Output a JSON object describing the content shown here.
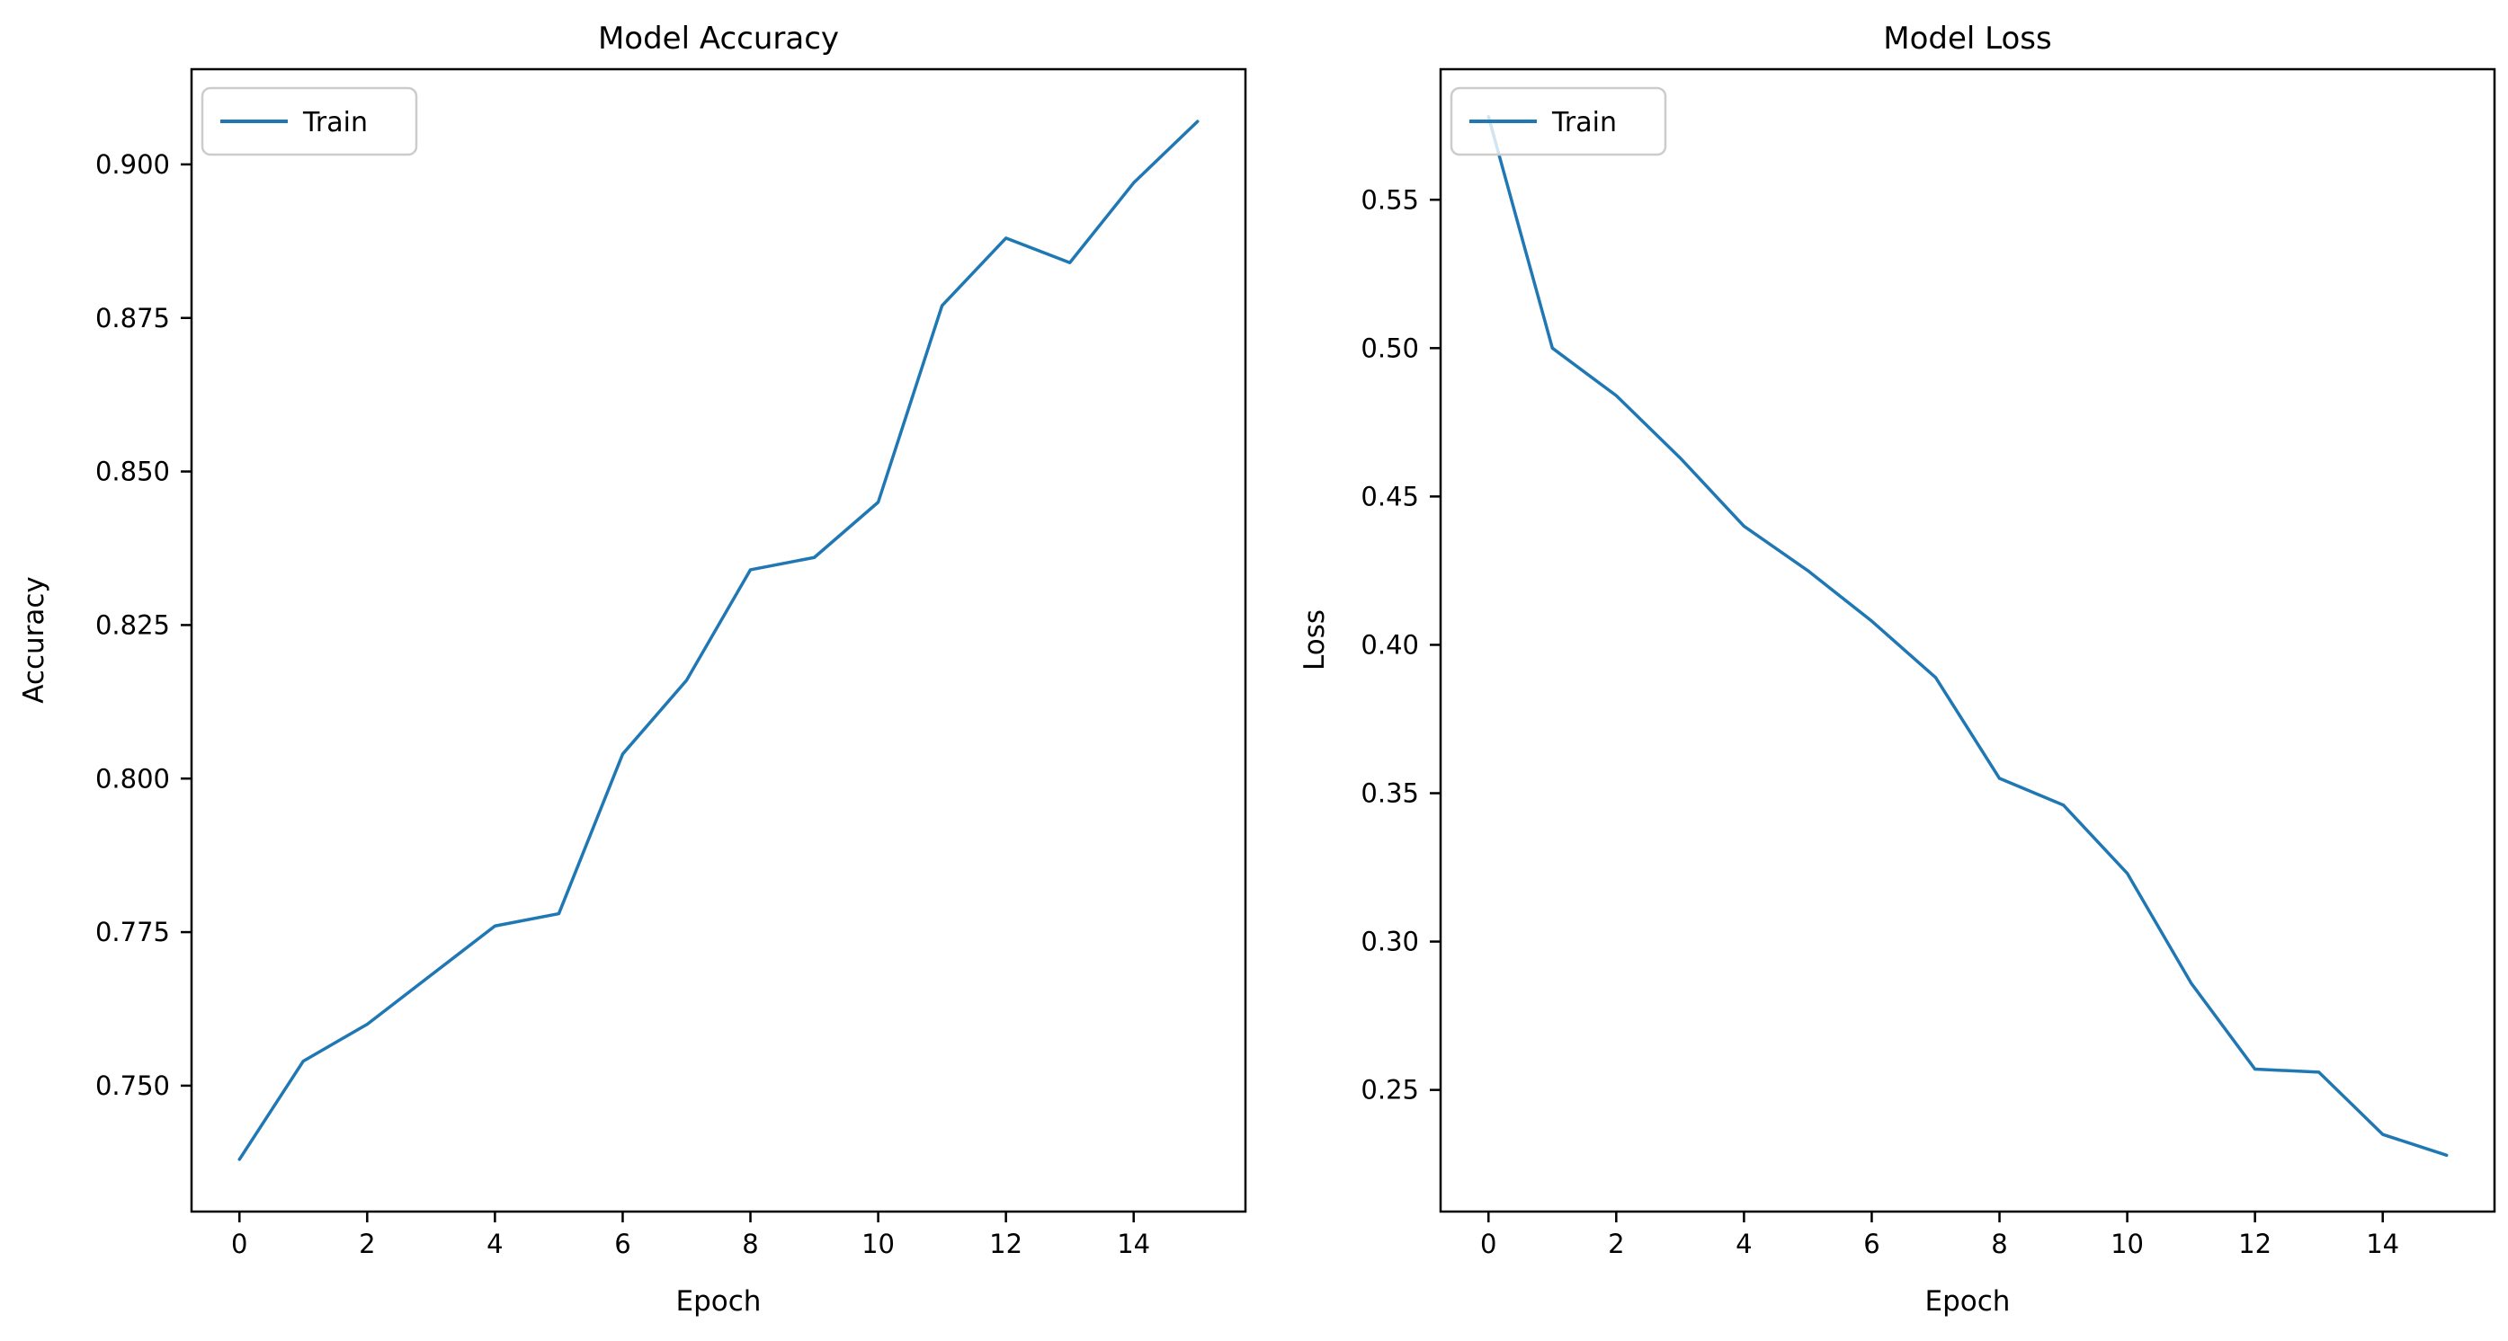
{
  "figure": {
    "background": "#ffffff",
    "num_charts": 2
  },
  "chart_data": [
    {
      "type": "line",
      "title": "Model Accuracy",
      "xlabel": "Epoch",
      "ylabel": "Accuracy",
      "legend": {
        "position": "upper left",
        "entries": [
          "Train"
        ]
      },
      "line_color": "#1f77b4",
      "grid": false,
      "x": [
        0,
        1,
        2,
        3,
        4,
        5,
        6,
        7,
        8,
        9,
        10,
        11,
        12,
        13,
        14,
        15
      ],
      "series": [
        {
          "name": "Train",
          "values": [
            0.738,
            0.754,
            0.76,
            0.768,
            0.776,
            0.778,
            0.804,
            0.816,
            0.834,
            0.836,
            0.845,
            0.877,
            0.888,
            0.884,
            0.897,
            0.907
          ]
        }
      ],
      "xlim": [
        -0.75,
        15.75
      ],
      "ylim": [
        0.7295,
        0.9155
      ],
      "x_tick_values": [
        0,
        2,
        4,
        6,
        8,
        10,
        12,
        14
      ],
      "x_tick_labels": [
        "0",
        "2",
        "4",
        "6",
        "8",
        "10",
        "12",
        "14"
      ],
      "y_tick_values": [
        0.75,
        0.775,
        0.8,
        0.825,
        0.85,
        0.875,
        0.9
      ],
      "y_tick_labels": [
        "0.750",
        "0.775",
        "0.800",
        "0.825",
        "0.850",
        "0.875",
        "0.900"
      ]
    },
    {
      "type": "line",
      "title": "Model Loss",
      "xlabel": "Epoch",
      "ylabel": "Loss",
      "legend": {
        "position": "upper left",
        "entries": [
          "Train"
        ]
      },
      "line_color": "#1f77b4",
      "grid": false,
      "x": [
        0,
        1,
        2,
        3,
        4,
        5,
        6,
        7,
        8,
        9,
        10,
        11,
        12,
        13,
        14,
        15
      ],
      "series": [
        {
          "name": "Train",
          "values": [
            0.578,
            0.5,
            0.484,
            0.463,
            0.44,
            0.425,
            0.408,
            0.389,
            0.355,
            0.346,
            0.323,
            0.286,
            0.257,
            0.256,
            0.235,
            0.228
          ]
        }
      ],
      "xlim": [
        -0.75,
        15.75
      ],
      "ylim": [
        0.209,
        0.594
      ],
      "x_tick_values": [
        0,
        2,
        4,
        6,
        8,
        10,
        12,
        14
      ],
      "x_tick_labels": [
        "0",
        "2",
        "4",
        "6",
        "8",
        "10",
        "12",
        "14"
      ],
      "y_tick_values": [
        0.25,
        0.3,
        0.35,
        0.4,
        0.45,
        0.5,
        0.55
      ],
      "y_tick_labels": [
        "0.25",
        "0.30",
        "0.35",
        "0.40",
        "0.45",
        "0.50",
        "0.55"
      ]
    }
  ]
}
